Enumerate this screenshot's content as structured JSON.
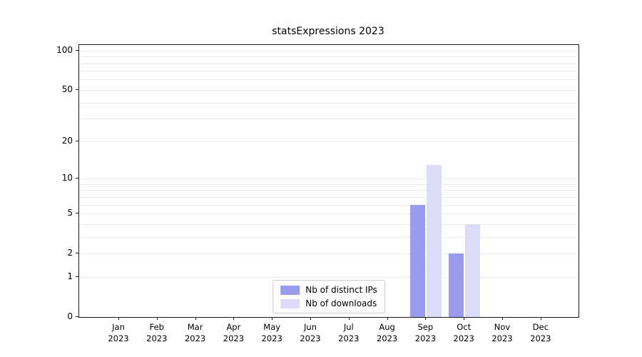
{
  "chart_data": {
    "type": "bar",
    "title": "statsExpressions 2023",
    "categories": [
      "Jan",
      "Feb",
      "Mar",
      "Apr",
      "May",
      "Jun",
      "Jul",
      "Aug",
      "Sep",
      "Oct",
      "Nov",
      "Dec"
    ],
    "category_year": "2023",
    "series": [
      {
        "name": "Nb of distinct IPs",
        "color": "#9a9aee",
        "values": [
          0,
          0,
          0,
          0,
          0,
          0,
          0,
          0,
          6,
          2,
          0,
          0
        ]
      },
      {
        "name": "Nb of downloads",
        "color": "#dcdcf8",
        "values": [
          0,
          0,
          0,
          0,
          0,
          0,
          0,
          0,
          13,
          4,
          0,
          0
        ]
      }
    ],
    "yticks": [
      100,
      50,
      20,
      10,
      5,
      2,
      1,
      0
    ],
    "grid_values": [
      1,
      2,
      3,
      4,
      5,
      6,
      7,
      8,
      9,
      10,
      20,
      30,
      40,
      50,
      60,
      70,
      80,
      90,
      100
    ],
    "scale": "log1p",
    "ylim": [
      0,
      110
    ],
    "xlabel": "",
    "ylabel": "",
    "legend_position": "lower center",
    "grid": "horizontal"
  }
}
